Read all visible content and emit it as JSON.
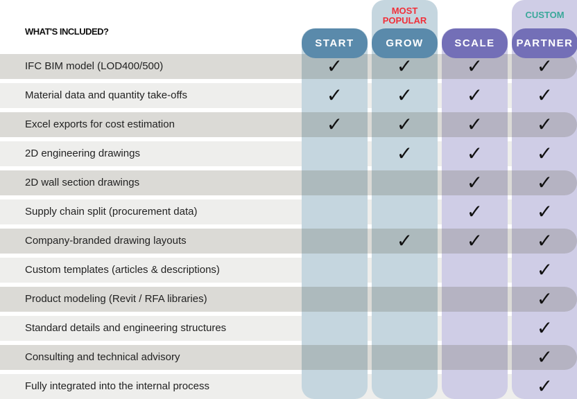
{
  "header": {
    "title": "WHAT'S INCLUDED?"
  },
  "colors": {
    "blue": "#5a8aab",
    "purple": "#736fb7",
    "popular": "#f0303a",
    "custom": "#3aa89a"
  },
  "plans": [
    {
      "name": "START",
      "badge": ""
    },
    {
      "name": "GROW",
      "badge": "MOST POPULAR"
    },
    {
      "name": "SCALE",
      "badge": ""
    },
    {
      "name": "PARTNER",
      "badge": "CUSTOM"
    }
  ],
  "check_symbol": "✓",
  "features": [
    {
      "label": "IFC BIM model (LOD400/500)",
      "included": [
        true,
        true,
        true,
        true
      ]
    },
    {
      "label": "Material data and quantity take-offs",
      "included": [
        true,
        true,
        true,
        true
      ]
    },
    {
      "label": "Excel exports for cost estimation",
      "included": [
        true,
        true,
        true,
        true
      ]
    },
    {
      "label": "2D engineering drawings",
      "included": [
        false,
        true,
        true,
        true
      ]
    },
    {
      "label": "2D wall section drawings",
      "included": [
        false,
        false,
        true,
        true
      ]
    },
    {
      "label": "Supply chain split (procurement data)",
      "included": [
        false,
        false,
        true,
        true
      ]
    },
    {
      "label": "Company-branded drawing layouts",
      "included": [
        false,
        true,
        true,
        true
      ]
    },
    {
      "label": "Custom templates (articles & descriptions)",
      "included": [
        false,
        false,
        false,
        true
      ]
    },
    {
      "label": "Product modeling (Revit / RFA libraries)",
      "included": [
        false,
        false,
        false,
        true
      ]
    },
    {
      "label": "Standard details and engineering structures",
      "included": [
        false,
        false,
        false,
        true
      ]
    },
    {
      "label": "Consulting and technical advisory",
      "included": [
        false,
        false,
        false,
        true
      ]
    },
    {
      "label": "Fully integrated into the internal process",
      "included": [
        false,
        false,
        false,
        true
      ]
    }
  ]
}
